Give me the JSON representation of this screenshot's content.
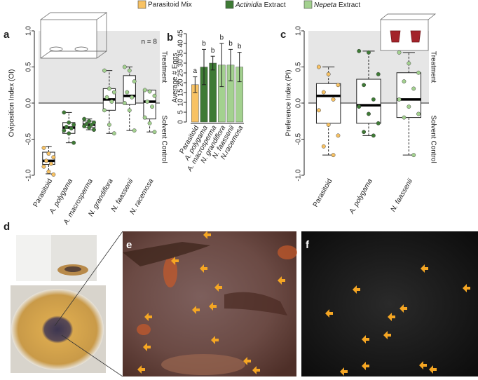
{
  "legend": [
    {
      "label": "Parasitoid Mix",
      "color": "#f8c263"
    },
    {
      "italic": "Actinidia",
      "text": "Extract",
      "color": "#3e7a35"
    },
    {
      "italic": "Nepeta",
      "text": "Extract",
      "color": "#a3d18f"
    }
  ],
  "chart_data": [
    {
      "type": "box",
      "panel_label": "a",
      "ylabel": "Oviposition Index (OI)",
      "n_label": "n = 8",
      "upper_label": "Treatment",
      "lower_label": "Solvent Control",
      "categories": [
        "Parasitoid",
        "A. polygama",
        "A. macrosperma",
        "N. grandiflora",
        "N. faassenii",
        "N. racemosa"
      ],
      "colors": [
        "#f8c263",
        "#3e7a35",
        "#3e7a35",
        "#a3d18f",
        "#a3d18f",
        "#a3d18f"
      ],
      "boxes": [
        {
          "whisker_low": -0.98,
          "q1": -0.85,
          "median": -0.8,
          "q3": -0.68,
          "whisker_high": -0.6
        },
        {
          "whisker_low": -0.55,
          "q1": -0.42,
          "median": -0.34,
          "q3": -0.27,
          "whisker_high": -0.13
        },
        {
          "whisker_low": -0.37,
          "q1": -0.34,
          "median": -0.3,
          "q3": -0.25,
          "whisker_high": -0.22
        },
        {
          "whisker_low": -0.42,
          "q1": -0.1,
          "median": 0.05,
          "q3": 0.2,
          "whisker_high": 0.45
        },
        {
          "whisker_low": -0.38,
          "q1": -0.02,
          "median": 0.1,
          "q3": 0.38,
          "whisker_high": 0.5
        },
        {
          "whisker_low": -0.4,
          "q1": -0.22,
          "median": 0.02,
          "q3": 0.18,
          "whisker_high": 0.18
        }
      ],
      "points": [
        [
          -0.62,
          -0.7,
          -0.75,
          -0.8,
          -0.84,
          -0.88,
          -0.95,
          -0.99
        ],
        [
          -0.13,
          -0.27,
          -0.3,
          -0.33,
          -0.35,
          -0.38,
          -0.42,
          -0.55
        ],
        [
          -0.22,
          -0.25,
          -0.27,
          -0.29,
          -0.3,
          -0.32,
          -0.34,
          -0.37
        ],
        [
          0.45,
          0.2,
          0.15,
          0.08,
          0.02,
          -0.1,
          -0.3,
          -0.42
        ],
        [
          0.5,
          0.45,
          0.3,
          0.15,
          0.08,
          0.0,
          -0.1,
          -0.38
        ],
        [
          0.18,
          0.16,
          0.1,
          0.02,
          -0.05,
          -0.2,
          -0.28,
          -0.4
        ]
      ],
      "ylim": [
        -1,
        1
      ],
      "yticks": [
        {
          "value": -1,
          "label": "-1.0"
        },
        {
          "value": -0.5,
          "label": "-0.5"
        },
        {
          "value": 0,
          "label": "0.0"
        },
        {
          "value": 0.5,
          "label": "0.5"
        },
        {
          "value": 1,
          "label": "1.0"
        }
      ]
    },
    {
      "type": "bar",
      "panel_label": "b",
      "ylabel": "Average # Eggs",
      "categories": [
        "Parasitoid",
        "A. polygama",
        "A. macrosperma",
        "N. grandiflora",
        "N. faassenii",
        "N.racemosa"
      ],
      "colors": [
        "#f8c263",
        "#3e7a35",
        "#3e7a35",
        "#a3d18f",
        "#a3d18f",
        "#a3d18f"
      ],
      "values": [
        19,
        28,
        30,
        29,
        29,
        28
      ],
      "errors": [
        4,
        9,
        3.5,
        11,
        8,
        7.5
      ],
      "letters": [
        "a",
        "b",
        "b",
        "b",
        "b",
        "b"
      ],
      "ylim": [
        0,
        45
      ],
      "yticks": [
        0,
        5,
        10,
        15,
        20,
        25,
        30,
        35,
        40,
        45
      ]
    },
    {
      "type": "box",
      "panel_label": "c",
      "ylabel": "Preference Index (PI)",
      "n_label": "n = 10",
      "upper_label": "Treatment",
      "lower_label": "Solvent Control",
      "categories": [
        "Parasitoid",
        "A. polygama",
        "N. faassenii"
      ],
      "colors": [
        "#f8c263",
        "#3e7a35",
        "#a3d18f"
      ],
      "boxes": [
        {
          "whisker_low": -0.72,
          "q1": -0.28,
          "median": 0.1,
          "q3": 0.27,
          "whisker_high": 0.5
        },
        {
          "whisker_low": -0.45,
          "q1": -0.28,
          "median": -0.03,
          "q3": 0.33,
          "whisker_high": 0.72
        },
        {
          "whisker_low": -0.72,
          "q1": -0.2,
          "median": 0.05,
          "q3": 0.42,
          "whisker_high": 0.7
        }
      ],
      "points": [
        [
          0.5,
          0.4,
          0.25,
          0.15,
          0.05,
          -0.1,
          -0.3,
          -0.45,
          -0.6,
          -0.72
        ],
        [
          0.72,
          0.7,
          0.4,
          0.25,
          0.05,
          -0.05,
          -0.15,
          -0.28,
          -0.4,
          -0.45
        ],
        [
          0.7,
          0.55,
          0.42,
          0.3,
          0.2,
          0.05,
          -0.05,
          -0.15,
          -0.2,
          -0.72
        ]
      ],
      "ylim": [
        -1,
        1
      ],
      "yticks": [
        {
          "value": -1,
          "label": "-1.0"
        },
        {
          "value": -0.5,
          "label": "-0.5"
        },
        {
          "value": 0,
          "label": "0.0"
        },
        {
          "value": 0.5,
          "label": "0.5"
        },
        {
          "value": 1,
          "label": "1.0"
        }
      ]
    }
  ],
  "photos": {
    "d": "d",
    "e": "e",
    "f": "f"
  }
}
